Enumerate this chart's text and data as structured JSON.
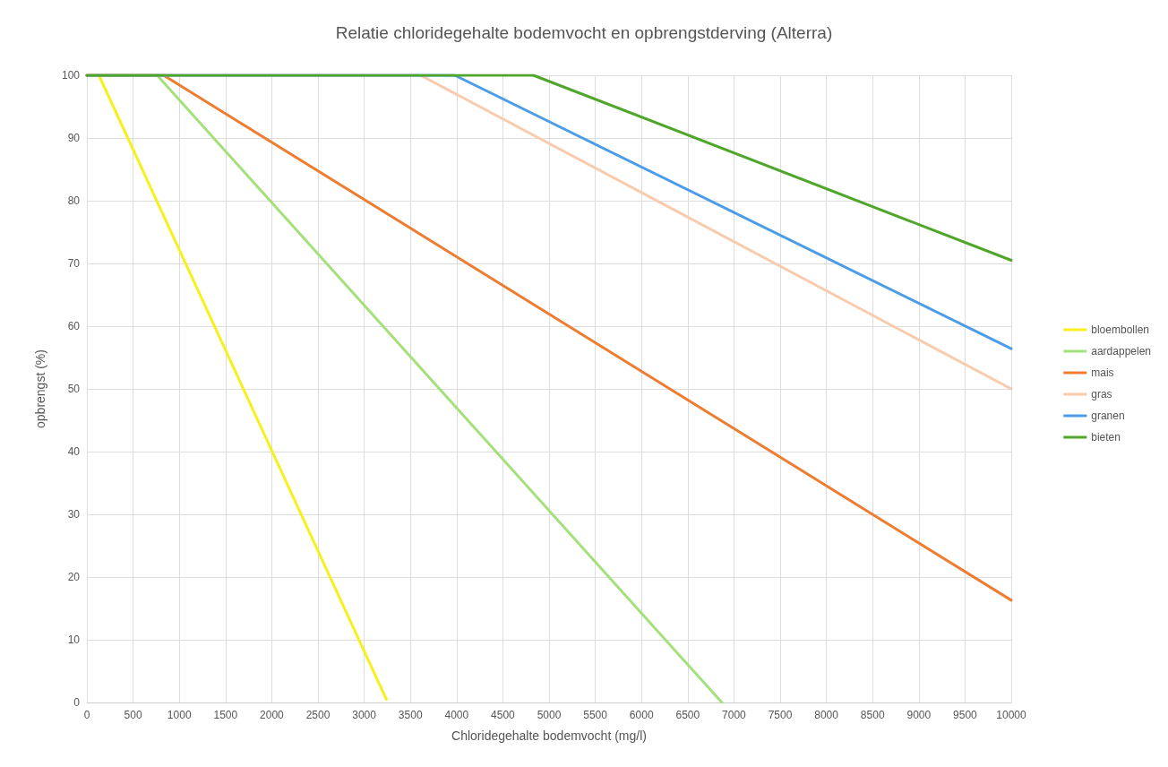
{
  "chart_data": {
    "type": "line",
    "title": "Relatie chloridegehalte bodemvocht en opbrengstderving (Alterra)",
    "xlabel": "Chloridegehalte bodemvocht (mg/l)",
    "ylabel": "opbrengst (%)",
    "xlim": [
      0,
      10000
    ],
    "xticks": [
      0,
      500,
      1000,
      1500,
      2000,
      2500,
      3000,
      3500,
      4000,
      4500,
      5000,
      5500,
      6000,
      6500,
      7000,
      7500,
      8000,
      8500,
      9000,
      9500,
      10000
    ],
    "ylim": [
      0,
      100
    ],
    "yticks": [
      0,
      10,
      20,
      30,
      40,
      50,
      60,
      70,
      80,
      90,
      100
    ],
    "grid": true,
    "legend": "right",
    "marker": "none",
    "line_style": "solid",
    "series": [
      {
        "name": "bloembollen",
        "color": "#f7f01c",
        "x": [
          0,
          130,
          3240
        ],
        "values": [
          100,
          100,
          0.5
        ]
      },
      {
        "name": "aardappelen",
        "color": "#a4e07c",
        "x": [
          0,
          760,
          6870
        ],
        "values": [
          100,
          100,
          0
        ]
      },
      {
        "name": "mais",
        "color": "#ee7d31",
        "x": [
          0,
          830,
          10000
        ],
        "values": [
          100,
          100,
          16.3
        ]
      },
      {
        "name": "gras",
        "color": "#f8cbad",
        "x": [
          0,
          3610,
          10000
        ],
        "values": [
          100,
          100,
          50
        ]
      },
      {
        "name": "granen",
        "color": "#4a9de6",
        "x": [
          0,
          3980,
          10000
        ],
        "values": [
          100,
          100,
          56.4
        ]
      },
      {
        "name": "bieten",
        "color": "#4ea72a",
        "x": [
          0,
          4830,
          10000
        ],
        "values": [
          100,
          100,
          70.5
        ]
      }
    ]
  }
}
